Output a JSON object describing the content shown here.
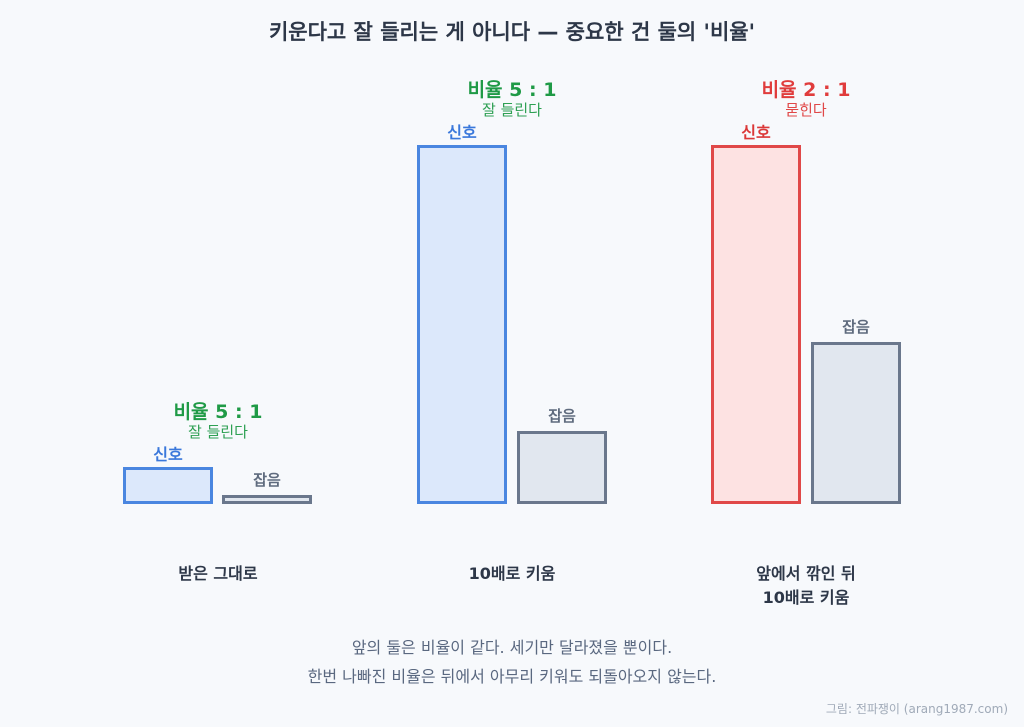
{
  "title": "키운다고 잘 들리는 게 아니다 — 중요한 건 둘의 '비율'",
  "labels": {
    "signal": "신호",
    "noise": "잡음"
  },
  "groups": [
    {
      "name": "받은 그대로",
      "ratio": "비율 5 : 1",
      "verdict": "잘 들린다",
      "signal": 5,
      "noise": 1,
      "signal_color": "#4a86e0",
      "verdict_status": "good"
    },
    {
      "name": "10배로 키움",
      "ratio": "비율 5 : 1",
      "verdict": "잘 들린다",
      "signal": 50,
      "noise": 10,
      "signal_color": "#4a86e0",
      "verdict_status": "good"
    },
    {
      "name_line1": "앞에서 깎인 뒤",
      "name_line2": "10배로 키움",
      "ratio": "비율 2 : 1",
      "verdict": "묻힌다",
      "signal": 50,
      "noise": 25,
      "signal_color": "#e04848",
      "verdict_status": "bad"
    }
  ],
  "caption": {
    "line1": "앞의 둘은 비율이 같다. 세기만 달라졌을 뿐이다.",
    "line2": "한번 나빠진 비율은 뒤에서 아무리 키워도 되돌아오지 않는다."
  },
  "credit": "그림: 전파쟁이 (arang1987.com)",
  "colors": {
    "signal_blue": "#4a86e0",
    "signal_red": "#e04848",
    "noise": "#6a778c",
    "good": "#1f9a46",
    "bad": "#e03c3c"
  }
}
